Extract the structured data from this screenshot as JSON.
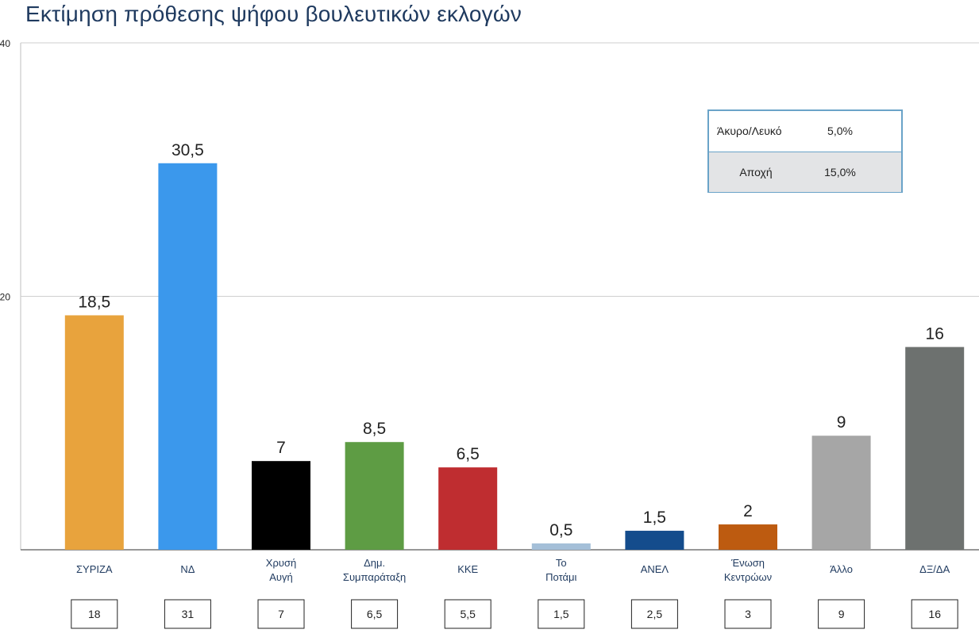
{
  "chart_data": {
    "type": "bar",
    "title": "Εκτίμηση πρόθεσης ψήφου βουλευτικών εκλογών",
    "xlabel": "",
    "ylabel": "",
    "ylim": [
      0,
      40
    ],
    "yticks": [
      {
        "value": 20,
        "label": "20"
      },
      {
        "value": 40,
        "label": "40"
      }
    ],
    "grid": true,
    "categories": [
      [
        "ΣΥΡΙΖΑ"
      ],
      [
        "ΝΔ"
      ],
      [
        "Χρυσή",
        "Αυγή"
      ],
      [
        "Δημ.",
        "Συμπαράταξη"
      ],
      [
        "ΚΚΕ"
      ],
      [
        "Το",
        "Ποτάμι"
      ],
      [
        "ΑΝΕΛ"
      ],
      [
        "Ένωση",
        "Κεντρώων"
      ],
      [
        "Άλλο"
      ],
      [
        "ΔΞ/ΔΑ"
      ]
    ],
    "values": [
      18.5,
      30.5,
      7,
      8.5,
      6.5,
      0.5,
      1.5,
      2,
      9,
      16
    ],
    "value_labels": [
      "18,5",
      "30,5",
      "7",
      "8,5",
      "6,5",
      "0,5",
      "1,5",
      "2",
      "9",
      "16"
    ],
    "colors": [
      "#e8a33d",
      "#3b98ec",
      "#000000",
      "#5e9c44",
      "#bf2d30",
      "#a4bfd8",
      "#144c8c",
      "#bd5b10",
      "#a6a6a6",
      "#6d716f"
    ],
    "comparison_values": [
      "18",
      "31",
      "7",
      "6,5",
      "5,5",
      "1,5",
      "2,5",
      "3",
      "9",
      "16"
    ]
  },
  "info_table": {
    "rows": [
      {
        "label": "Άκυρο/Λευκό",
        "value": "5,0%"
      },
      {
        "label": "Αποχή",
        "value": "15,0%"
      }
    ]
  }
}
